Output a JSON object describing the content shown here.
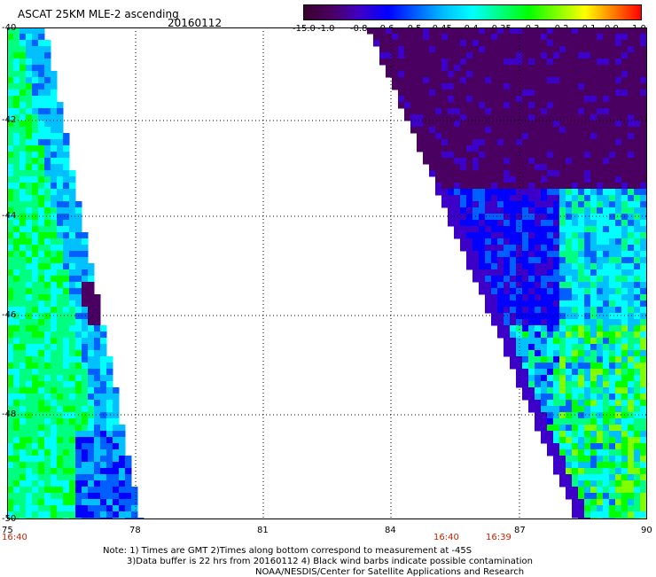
{
  "header": {
    "title": "ASCAT 25KM MLE-2 ascending",
    "date": "20160112"
  },
  "colorbar": {
    "labels": [
      "-15.0",
      "-1.0",
      "-0.8",
      "-0.6",
      "-0.5",
      "-0.45",
      "-0.4",
      "-0.35",
      "-0.3",
      "-0.2",
      "-0.1",
      "0.0",
      "1.0"
    ],
    "colors": [
      "#3a0030",
      "#4a0060",
      "#3d00c8",
      "#0000ff",
      "#0060ff",
      "#00c0ff",
      "#00ffff",
      "#00ff80",
      "#00ff00",
      "#80ff00",
      "#ffff00",
      "#ff8000",
      "#ff0000"
    ]
  },
  "axes": {
    "x_ticks": [
      "75",
      "78",
      "81",
      "84",
      "87",
      "90"
    ],
    "y_ticks": [
      "-40",
      "-42",
      "-44",
      "-46",
      "-48",
      "-50"
    ],
    "lon_range": [
      75,
      90
    ],
    "lat_range": [
      -40,
      -50
    ]
  },
  "times": {
    "left": "16:40",
    "mid_a": "16:40",
    "mid_b": "16:39"
  },
  "notes": {
    "line1": "Note: 1) Times are GMT 2)Times along bottom correspond to measurement at -45S",
    "line2": "3)Data buffer is 22 hrs from 20160112 4) Black wind barbs indicate possible contamination",
    "line3": "NOAA/NESDIS/Center for Satellite Applications and Research"
  }
}
